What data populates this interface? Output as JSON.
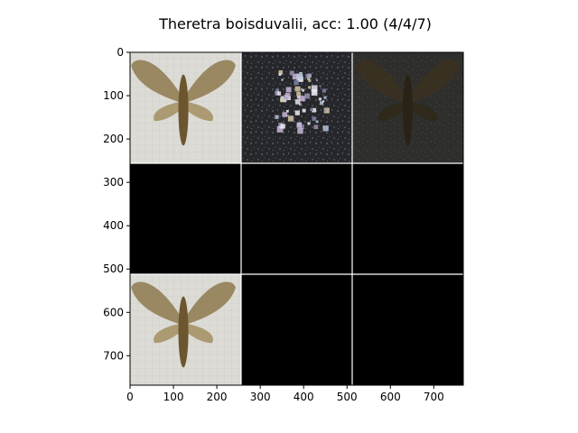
{
  "title": "Theretra boisduvalii, acc: 1.00 (4/4/7)",
  "chart_data": {
    "type": "image_grid",
    "title": "Theretra boisduvalii, acc: 1.00 (4/4/7)",
    "grid": {
      "rows": 3,
      "cols": 3,
      "tile_size": 256,
      "separator_color": "#ffffff"
    },
    "xlim": [
      0,
      768
    ],
    "ylim": [
      768,
      0
    ],
    "xticks": [
      0,
      100,
      200,
      300,
      400,
      500,
      600,
      700
    ],
    "yticks": [
      0,
      100,
      200,
      300,
      400,
      500,
      600,
      700
    ],
    "tiles": [
      {
        "row": 0,
        "col": 0,
        "content": "moth-photo",
        "bg": "#d9d8d3"
      },
      {
        "row": 0,
        "col": 1,
        "content": "noisy-colored-reconstruction",
        "bg": "#2a2b2e"
      },
      {
        "row": 0,
        "col": 2,
        "content": "dark-moth-reconstruction",
        "bg": "#2f302d"
      },
      {
        "row": 1,
        "col": 0,
        "content": "black",
        "bg": "#000000"
      },
      {
        "row": 1,
        "col": 1,
        "content": "black",
        "bg": "#000000"
      },
      {
        "row": 1,
        "col": 2,
        "content": "black",
        "bg": "#000000"
      },
      {
        "row": 2,
        "col": 0,
        "content": "moth-photo",
        "bg": "#d9d8d3"
      },
      {
        "row": 2,
        "col": 1,
        "content": "black",
        "bg": "#000000"
      },
      {
        "row": 2,
        "col": 2,
        "content": "black",
        "bg": "#000000"
      }
    ]
  }
}
